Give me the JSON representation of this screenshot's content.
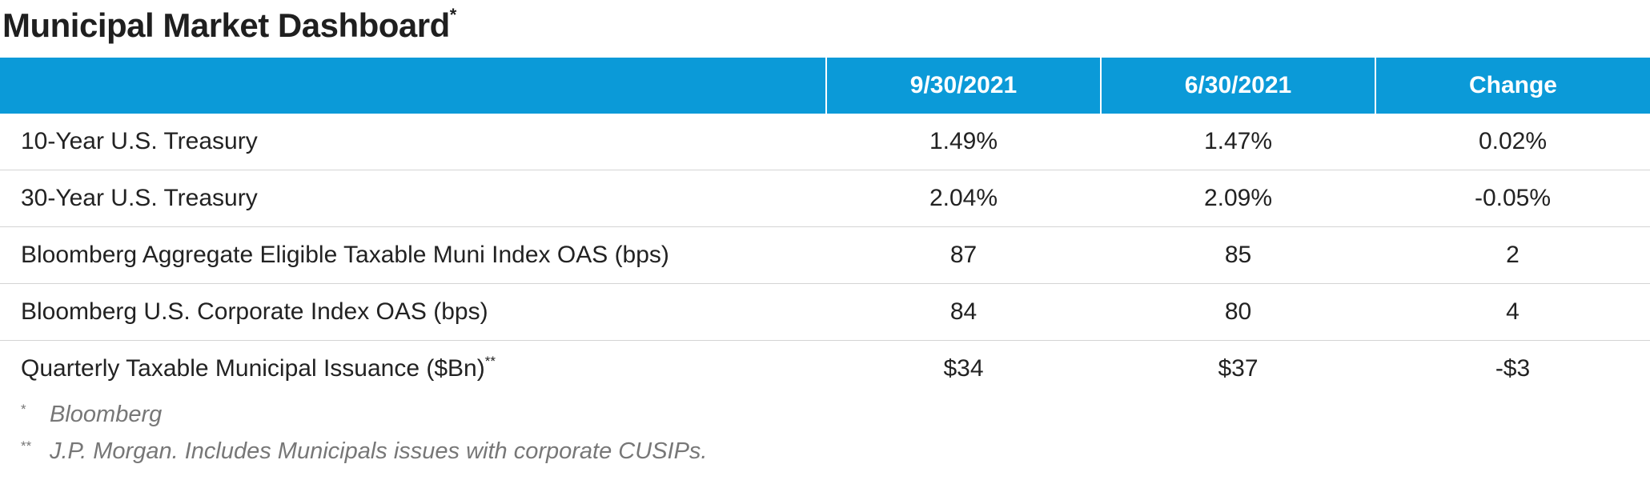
{
  "title": "Municipal Market Dashboard",
  "title_note": "*",
  "table": {
    "header": [
      "9/30/2021",
      "6/30/2021",
      "Change"
    ],
    "rows": [
      {
        "label": "10-Year U.S. Treasury",
        "values": [
          "1.49%",
          "1.47%",
          "0.02%"
        ]
      },
      {
        "label": "30-Year U.S. Treasury",
        "values": [
          "2.04%",
          "2.09%",
          "-0.05%"
        ]
      },
      {
        "label": "Bloomberg Aggregate Eligible Taxable Muni Index OAS (bps)",
        "values": [
          "87",
          "85",
          "2"
        ]
      },
      {
        "label": "Bloomberg U.S. Corporate Index OAS (bps)",
        "values": [
          "84",
          "80",
          "4"
        ]
      },
      {
        "label": "Quarterly Taxable Municipal Issuance ($Bn)",
        "note": "**",
        "values": [
          "$34",
          "$37",
          "-$3"
        ]
      }
    ]
  },
  "footnotes": [
    {
      "marker": "*",
      "text": "Bloomberg"
    },
    {
      "marker": "**",
      "text": "J.P. Morgan. Includes Municipals issues with corporate CUSIPs."
    }
  ]
}
